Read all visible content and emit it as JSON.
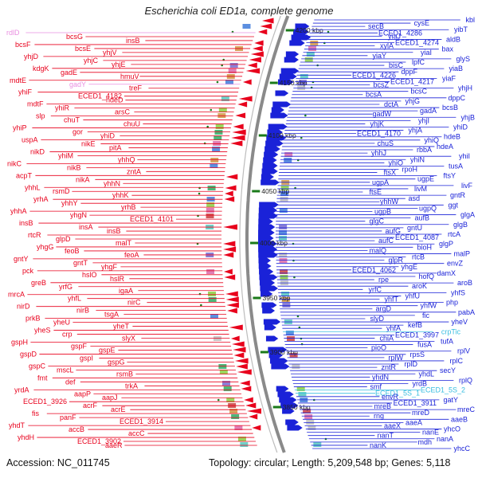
{
  "header": {
    "title": "Escherichia coli ED1a, complete genome"
  },
  "footer": {
    "accession": "Accession: NC_011745",
    "summary": "Topology: circular; Length: 5,209,548 bp; Genes: 5,118"
  },
  "colors": {
    "left_genes": "#e8001c",
    "right_genes": "#1a22d8",
    "rna_genes": "#e98fe0",
    "rna_genes_right": "#38bde0",
    "backbone": "#8a8a8a",
    "ruler_tick": "#1a7a1a"
  },
  "ruler": [
    {
      "label": "4200 kbp"
    },
    {
      "label": "4150 kbp"
    },
    {
      "label": "4100 kbp"
    },
    {
      "label": "4050 kbp"
    },
    {
      "label": "4000 kbp"
    },
    {
      "label": "3950 kbp"
    },
    {
      "label": "3900 kbp"
    },
    {
      "label": "3850 kbp"
    }
  ],
  "left_labels": [
    "rdlD",
    "bcsG",
    "insB",
    "bcsF",
    "bcsE",
    "yhjV",
    "yhjD",
    "yhjC",
    "yhjE",
    "kdgK",
    "gadE",
    "hmuV",
    "mdtE",
    "gadY",
    "treF",
    "yhiF",
    "ECED1_4182",
    "hdeD",
    "mdtF",
    "yhiR",
    "arsC",
    "slp",
    "chuT",
    "chuU",
    "yhiP",
    "gor",
    "yhiD",
    "uspA",
    "nikE",
    "pitA",
    "nikD",
    "yhiM",
    "yhhQ",
    "nikC",
    "nikB",
    "zntA",
    "acpT",
    "nikA",
    "yhhN",
    "yhhL",
    "rsmD",
    "yhhK",
    "yrhA",
    "yhhY",
    "yrhB",
    "yhhA",
    "yhgN",
    "ECED1_4101",
    "insB",
    "insA",
    "insB",
    "rtcR",
    "glpD",
    "malT",
    "yhgG",
    "feoB",
    "feoA",
    "gntY",
    "gntT",
    "yhgF",
    "pck",
    "hslO",
    "hslR",
    "greB",
    "yrfG",
    "igaA",
    "mrcA",
    "yhfL",
    "nirC",
    "nirD",
    "nirB",
    "tsgA",
    "prkB",
    "yheU",
    "yheT",
    "yheS",
    "crp",
    "slyX",
    "gspH",
    "gspF",
    "gspE",
    "gspD",
    "gspI",
    "gspG",
    "gspC",
    "mscL",
    "rsmB",
    "fmt",
    "def",
    "trkA",
    "yrdA",
    "aapP",
    "aapJ",
    "ECED1_3926",
    "acrF",
    "acrE",
    "fis",
    "panF",
    "ECED1_3914",
    "yhdT",
    "accB",
    "accC",
    "yhdH",
    "ECED1_3902",
    "aaeR"
  ],
  "right_labels": [
    "kbl",
    "cysE",
    "secB",
    "yibT",
    "ECED1_4286",
    "yiaJ",
    "aldB",
    "ECED1_4274",
    "xylA",
    "bax",
    "yiaI",
    "yiaY",
    "glyS",
    "lpfC",
    "bisC",
    "yiaB",
    "dppF",
    "ECED1_4226",
    "yiaF",
    "ECED1_4217",
    "bcsZ",
    "yhjH",
    "bcsC",
    "bcsA",
    "dppC",
    "yhjG",
    "dctA",
    "bcsB",
    "gadA",
    "gadW",
    "yhjB",
    "yhjI",
    "yhjK",
    "yhiD",
    "yhjA",
    "ECED1_4170",
    "hdeB",
    "yhiQ",
    "chuS",
    "hdeA",
    "rbbA",
    "yhhJ",
    "yhiI",
    "yhiN",
    "yhiO",
    "tusA",
    "rpoH",
    "ftsX",
    "ftsY",
    "ugpE",
    "ugpA",
    "livF",
    "livM",
    "ftsE",
    "gntR",
    "asd",
    "yhhW",
    "ggt",
    "ugpQ",
    "ugpB",
    "glgA",
    "aufB",
    "glgC",
    "glgB",
    "gntU",
    "aufG",
    "rtcA",
    "ECED1_4087",
    "aufC",
    "glgP",
    "bioH",
    "malQ",
    "malP",
    "rtcB",
    "glpR",
    "envZ",
    "yhgE",
    "ECED1_4062",
    "damX",
    "hofQ",
    "rpe",
    "aroB",
    "aroK",
    "yrfC",
    "yhfS",
    "yhfU",
    "yhfT",
    "php",
    "yhfW",
    "argD",
    "pabA",
    "fic",
    "slyD",
    "yheV",
    "kefB",
    "yhfA",
    "crpTic",
    "ECED1_3997",
    "chiA",
    "tufA",
    "fusA",
    "pioO",
    "rplV",
    "rpsS",
    "rplW",
    "rplC",
    "rplD",
    "zntR",
    "secY",
    "yhdL",
    "yhdN",
    "rplQ",
    "yrdB",
    "smf",
    "ECED1_5S_2",
    "ECED1_5S_1",
    "envR",
    "gatY",
    "ECED1_3911",
    "mreB",
    "mreC",
    "mreD",
    "rng",
    "aaeB",
    "aaeA",
    "aaeX",
    "yhcO",
    "nanE",
    "nanT",
    "nanA",
    "mdh",
    "nanK",
    "yhcC"
  ]
}
